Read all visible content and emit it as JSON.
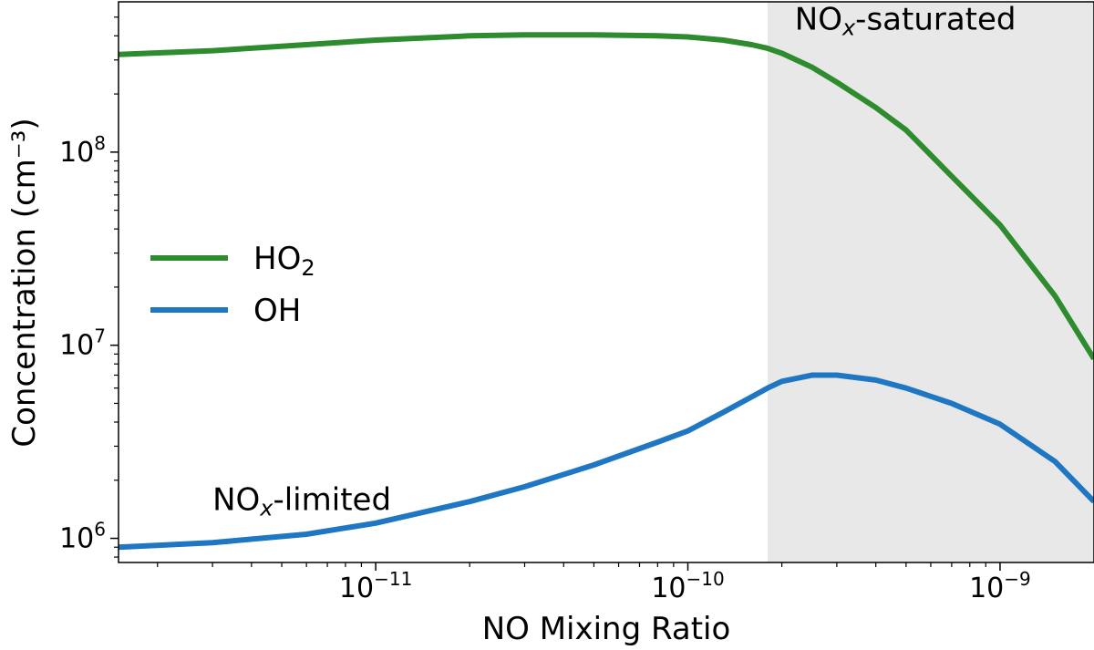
{
  "chart_data": {
    "type": "line",
    "xlabel": "NO Mixing Ratio",
    "ylabel": "Concentration (cm⁻³)",
    "xscale": "log",
    "yscale": "log",
    "xlim": [
      1.5e-12,
      2e-09
    ],
    "ylim": [
      750000.0,
      600000000.0
    ],
    "x_ticks": [
      {
        "value": 1e-11,
        "base": "10",
        "exp": "−11"
      },
      {
        "value": 1e-10,
        "base": "10",
        "exp": "−10"
      },
      {
        "value": 1e-09,
        "base": "10",
        "exp": "−9"
      }
    ],
    "y_ticks": [
      {
        "value": 1000000.0,
        "base": "10",
        "exp": "6"
      },
      {
        "value": 10000000.0,
        "base": "10",
        "exp": "7"
      },
      {
        "value": 100000000.0,
        "base": "10",
        "exp": "8"
      }
    ],
    "shaded_region": {
      "x_start": 1.8e-10,
      "x_end": 2e-09,
      "color": "#e8e8e8"
    },
    "annotations": [
      {
        "id": "saturated",
        "main": "NO",
        "sub": "x",
        "suffix": "-saturated",
        "x": 2.2e-10,
        "y": 430000000.0
      },
      {
        "id": "limited",
        "main": "NO",
        "sub": "x",
        "suffix": "-limited",
        "x": 3e-12,
        "y": 1400000.0
      }
    ],
    "legend": {
      "position": "center-left",
      "entries": [
        {
          "series_id": "ho2",
          "main": "HO",
          "sub": "2"
        },
        {
          "series_id": "oh",
          "main": "OH",
          "sub": ""
        }
      ]
    },
    "series": [
      {
        "id": "ho2",
        "name": "HO2",
        "color": "#2e8b2e",
        "x": [
          1.5e-12,
          3e-12,
          6e-12,
          1e-11,
          2e-11,
          3e-11,
          5e-11,
          8e-11,
          1e-10,
          1.3e-10,
          1.6e-10,
          1.8e-10,
          2e-10,
          2.5e-10,
          3e-10,
          4e-10,
          5e-10,
          7e-10,
          1e-09,
          1.5e-09,
          2e-09
        ],
        "values": [
          320000000.0,
          335000000.0,
          360000000.0,
          380000000.0,
          400000000.0,
          405000000.0,
          405000000.0,
          400000000.0,
          395000000.0,
          380000000.0,
          360000000.0,
          345000000.0,
          325000000.0,
          275000000.0,
          230000000.0,
          170000000.0,
          130000000.0,
          75000000.0,
          42000000.0,
          18000000.0,
          8500000.0
        ]
      },
      {
        "id": "oh",
        "name": "OH",
        "color": "#1f77c4",
        "x": [
          1.5e-12,
          3e-12,
          6e-12,
          1e-11,
          2e-11,
          3e-11,
          5e-11,
          8e-11,
          1e-10,
          1.3e-10,
          1.6e-10,
          1.8e-10,
          2e-10,
          2.5e-10,
          3e-10,
          4e-10,
          5e-10,
          7e-10,
          1e-09,
          1.5e-09,
          2e-09
        ],
        "values": [
          900000.0,
          950000.0,
          1050000.0,
          1200000.0,
          1550000.0,
          1850000.0,
          2400000.0,
          3150000.0,
          3600000.0,
          4500000.0,
          5400000.0,
          6000000.0,
          6500000.0,
          7000000.0,
          7000000.0,
          6600000.0,
          6000000.0,
          5000000.0,
          3900000.0,
          2500000.0,
          1550000.0
        ]
      }
    ]
  }
}
